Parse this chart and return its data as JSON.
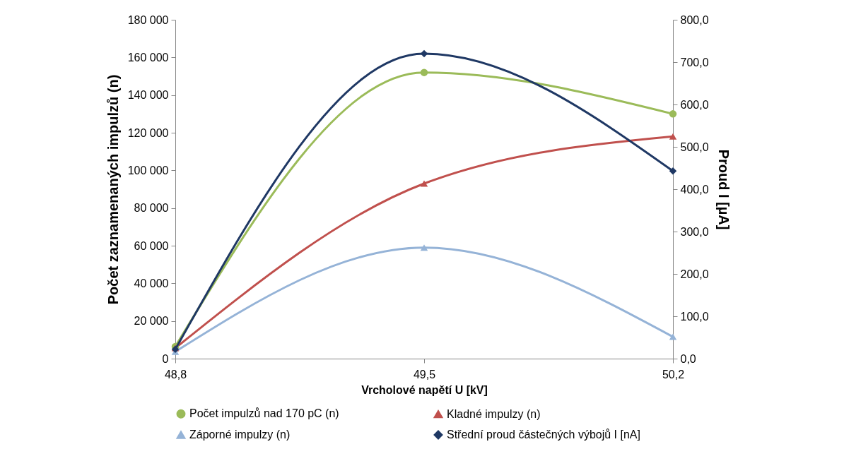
{
  "chart_data": {
    "type": "line",
    "categories": [
      "48,8",
      "49,5",
      "50,2"
    ],
    "xlabel": "Vrcholové napětí  U [kV]",
    "ylabel": "Počet zaznamenaných impulzů (n)",
    "y2label": "Proud I [µA]",
    "ylim": [
      0,
      180000
    ],
    "yticks": [
      {
        "value": 0,
        "label": "0"
      },
      {
        "value": 20000,
        "label": "20 000"
      },
      {
        "value": 40000,
        "label": "40 000"
      },
      {
        "value": 60000,
        "label": "60 000"
      },
      {
        "value": 80000,
        "label": "80 000"
      },
      {
        "value": 100000,
        "label": "100 000"
      },
      {
        "value": 120000,
        "label": "120 000"
      },
      {
        "value": 140000,
        "label": "140 000"
      },
      {
        "value": 160000,
        "label": "160 000"
      },
      {
        "value": 180000,
        "label": "180 000"
      }
    ],
    "y2lim": [
      0,
      800
    ],
    "y2ticks": [
      {
        "value": 0,
        "label": "0,0"
      },
      {
        "value": 100,
        "label": "100,0"
      },
      {
        "value": 200,
        "label": "200,0"
      },
      {
        "value": 300,
        "label": "300,0"
      },
      {
        "value": 400,
        "label": "400,0"
      },
      {
        "value": 500,
        "label": "500,0"
      },
      {
        "value": 600,
        "label": "600,0"
      },
      {
        "value": 700,
        "label": "700,0"
      },
      {
        "value": 800,
        "label": "800,0"
      }
    ],
    "grid": false,
    "legend": "bottom",
    "series": [
      {
        "name": "Počet impulzů nad 170 pC (n)",
        "color": "#9bbb59",
        "marker": "circle",
        "values": [
          6400,
          152000,
          130000
        ]
      },
      {
        "name": "Kladné impulzy (n)",
        "color": "#c0504d",
        "marker": "triangle",
        "values": [
          5600,
          93000,
          118000
        ]
      },
      {
        "name": "Záporné impulzy (n)",
        "color": "#95b3d7",
        "marker": "triangle",
        "values": [
          3700,
          59000,
          11600
        ]
      },
      {
        "name": "Střední proud částečných výbojů I [nA]",
        "color": "#1f3864",
        "marker": "diamond",
        "axis": "y2",
        "values": [
          22,
          720,
          443
        ]
      }
    ]
  }
}
